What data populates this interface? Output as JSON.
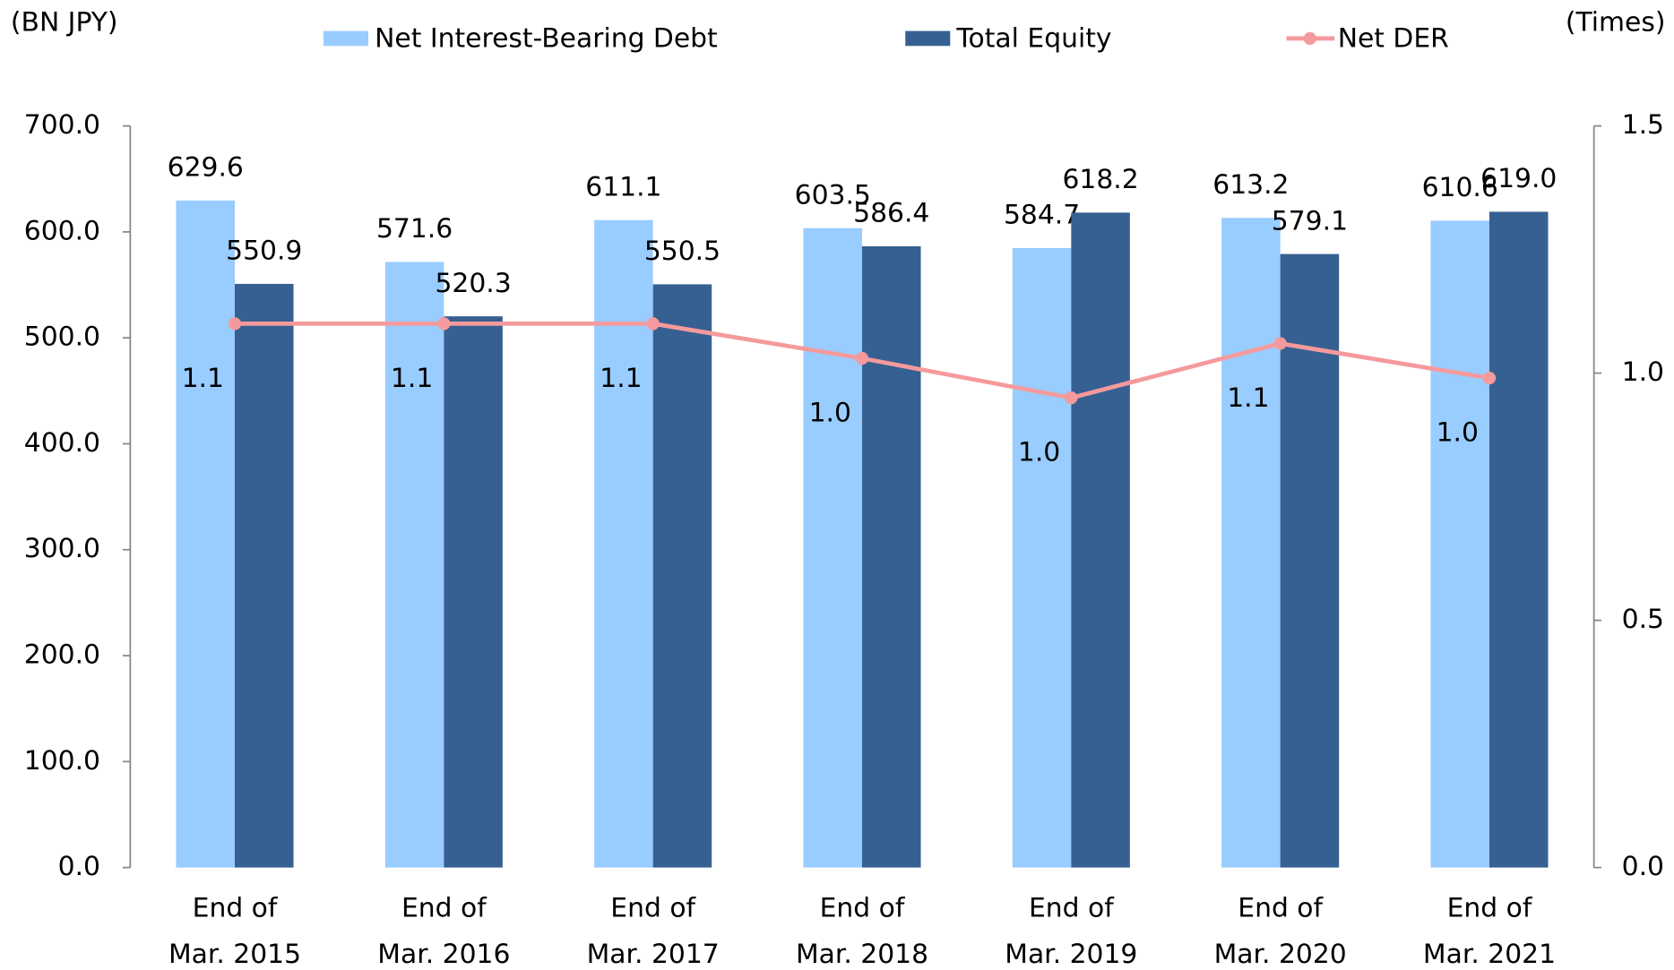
{
  "chart_data": {
    "type": "bar",
    "y_label": "(BN JPY)",
    "y2_label": "(Times)",
    "categories": [
      [
        "End of",
        "Mar. 2015"
      ],
      [
        "End of",
        "Mar. 2016"
      ],
      [
        "End of",
        "Mar. 2017"
      ],
      [
        "End of",
        "Mar. 2018"
      ],
      [
        "End of",
        "Mar. 2019"
      ],
      [
        "End of",
        "Mar. 2020"
      ],
      [
        "End of",
        "Mar. 2021"
      ]
    ],
    "series": [
      {
        "name": "Net Interest-Bearing Debt",
        "type": "bar",
        "color": "#99ccff",
        "values": [
          629.6,
          571.6,
          611.1,
          603.5,
          584.7,
          613.2,
          610.6
        ]
      },
      {
        "name": "Total Equity",
        "type": "bar",
        "color": "#366092",
        "values": [
          550.9,
          520.3,
          550.5,
          586.4,
          618.2,
          579.1,
          619.0
        ],
        "value_labels": [
          "550.9",
          "520.3",
          "550.5",
          "586.4",
          "618.2",
          "579.1",
          "619.0"
        ]
      },
      {
        "name": "Net DER",
        "type": "line",
        "axis": "y2",
        "color": "#f59a9c",
        "values": [
          1.1,
          1.1,
          1.1,
          1.03,
          0.95,
          1.06,
          0.99
        ],
        "value_labels": [
          "1.1",
          "1.1",
          "1.1",
          "1.0",
          "1.0",
          "1.1",
          "1.0"
        ]
      }
    ],
    "ylim": [
      0,
      700
    ],
    "yticks": [
      {
        "value": 0,
        "label": "0.0"
      },
      {
        "value": 100,
        "label": "100.0"
      },
      {
        "value": 200,
        "label": "200.0"
      },
      {
        "value": 300,
        "label": "300.0"
      },
      {
        "value": 400,
        "label": "400.0"
      },
      {
        "value": 500,
        "label": "500.0"
      },
      {
        "value": 600,
        "label": "600.0"
      },
      {
        "value": 700,
        "label": "700.0"
      }
    ],
    "y2lim": [
      0,
      1.5
    ],
    "y2ticks": [
      {
        "value": 0,
        "label": "0.0"
      },
      {
        "value": 0.5,
        "label": "0.5"
      },
      {
        "value": 1,
        "label": "1.0"
      },
      {
        "value": 1.5,
        "label": "1.5"
      }
    ],
    "legend": "top",
    "grid": false
  }
}
